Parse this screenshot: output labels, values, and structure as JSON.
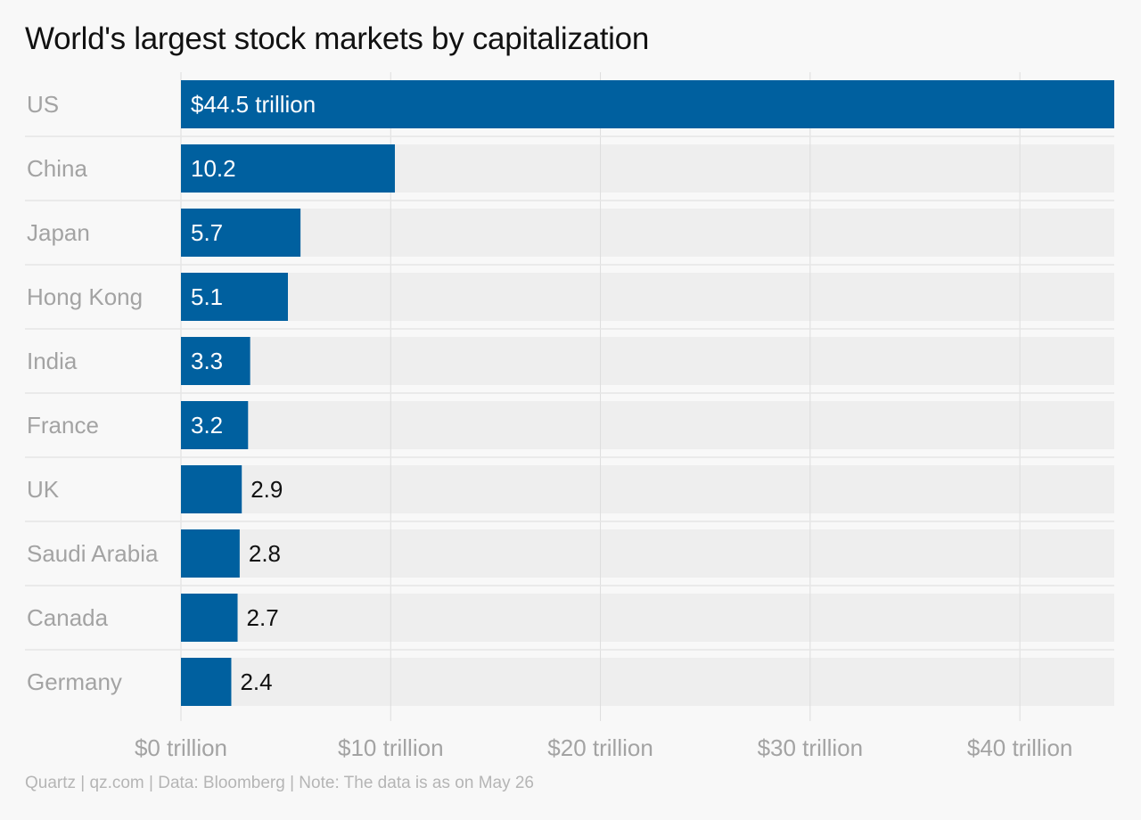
{
  "chart_data": {
    "type": "bar",
    "orientation": "horizontal",
    "title": "World's largest stock markets by capitalization",
    "categories": [
      "US",
      "China",
      "Japan",
      "Hong Kong",
      "India",
      "France",
      "UK",
      "Saudi Arabia",
      "Canada",
      "Germany"
    ],
    "values": [
      44.5,
      10.2,
      5.7,
      5.1,
      3.3,
      3.2,
      2.9,
      2.8,
      2.7,
      2.4
    ],
    "value_labels": [
      "$44.5 trillion",
      "10.2",
      "5.7",
      "5.1",
      "3.3",
      "3.2",
      "2.9",
      "2.8",
      "2.7",
      "2.4"
    ],
    "x_ticks": [
      0,
      10,
      20,
      30,
      40
    ],
    "x_tick_labels": [
      "$0 trillion",
      "$10 trillion",
      "$20 trillion",
      "$30 trillion",
      "$40 trillion"
    ],
    "xlim": [
      0,
      44.5
    ],
    "xlabel": "",
    "ylabel": "",
    "grid": true,
    "colors": {
      "bar": "#00609f",
      "track": "#eeeeee",
      "grid": "#dddddd",
      "separator": "#e6e6e6",
      "label_inside": "#ffffff",
      "label_outside": "#111111"
    }
  },
  "footer": "Quartz | qz.com | Data: Bloomberg | Note: The data is as on May 26"
}
